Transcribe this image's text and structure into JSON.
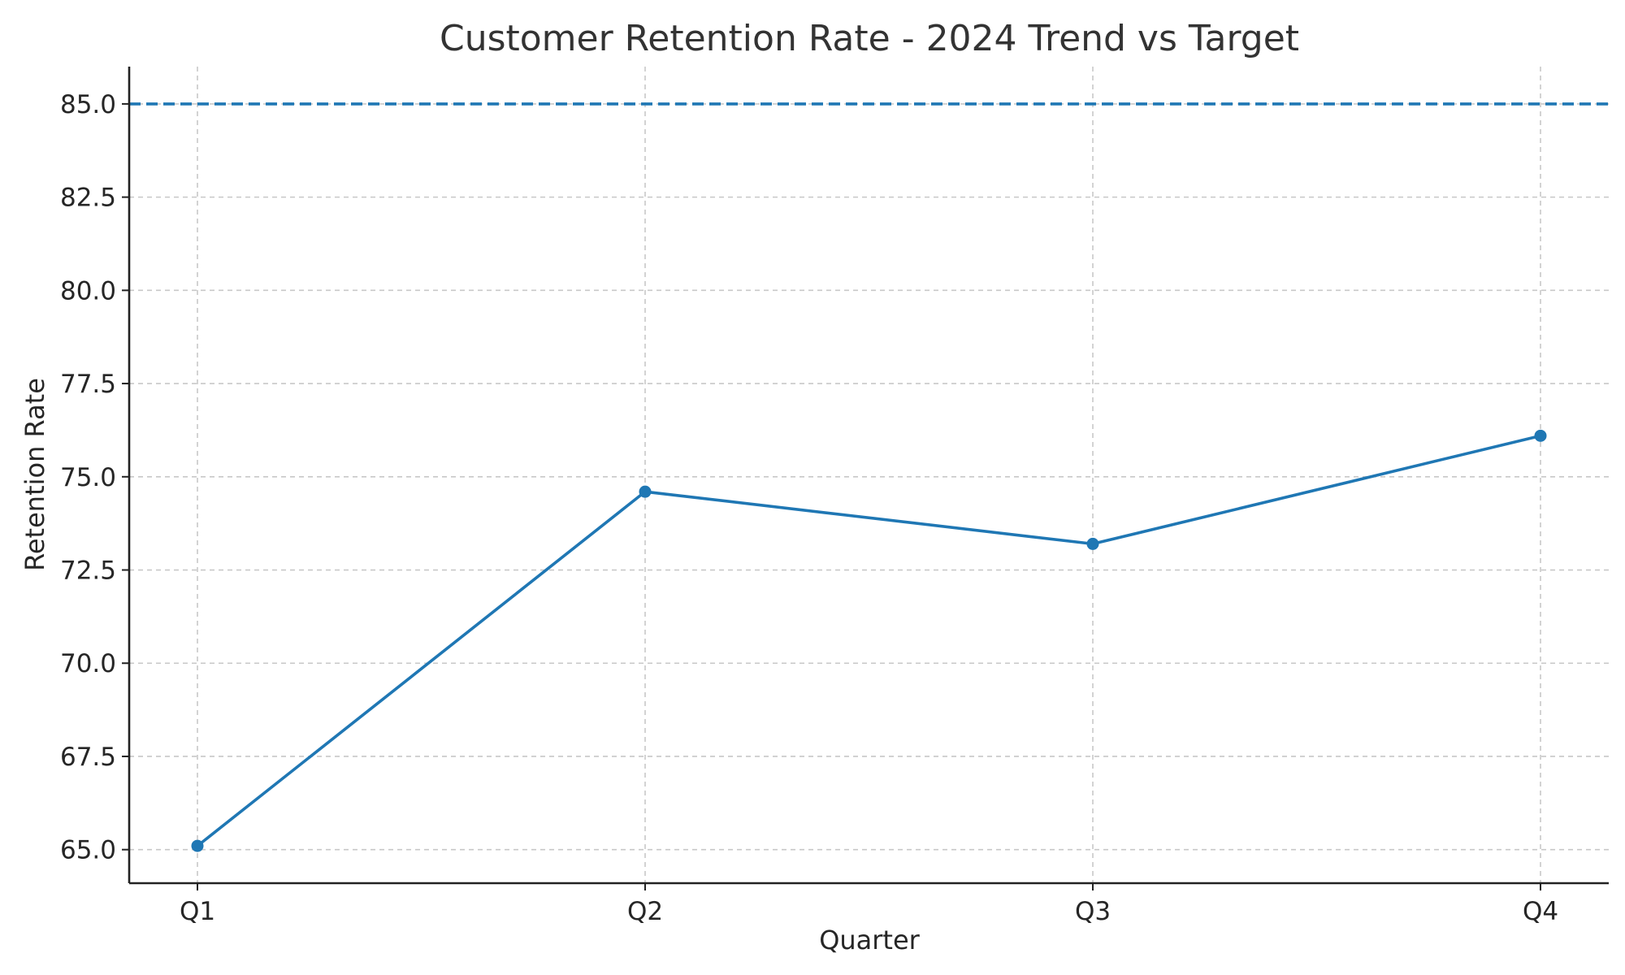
{
  "chart_data": {
    "type": "line",
    "title": "Customer Retention Rate - 2024 Trend vs Target",
    "xlabel": "Quarter",
    "ylabel": "Retention Rate",
    "categories": [
      "Q1",
      "Q2",
      "Q3",
      "Q4"
    ],
    "series": [
      {
        "values": [
          65.1,
          74.6,
          73.2,
          76.1
        ],
        "color": "#1f77b4",
        "marker": "circle"
      }
    ],
    "reference_lines": [
      {
        "value": 85.0,
        "style": "dashed",
        "color": "#1f77b4"
      }
    ],
    "yticks": [
      "65.0",
      "67.5",
      "70.0",
      "72.5",
      "75.0",
      "77.5",
      "80.0",
      "82.5",
      "85.0"
    ],
    "ylim": [
      64.1,
      86.0
    ],
    "grid": true
  }
}
